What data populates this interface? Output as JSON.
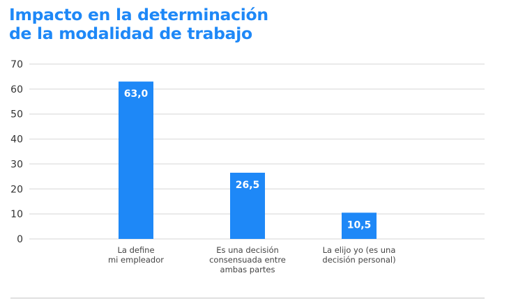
{
  "chart_data": {
    "type": "bar",
    "title_lines": [
      "Impacto en la determinación",
      "de la modalidad de trabajo"
    ],
    "categories": [
      [
        "La define",
        "mi empleador"
      ],
      [
        "Es una decisión",
        "consensuada entre",
        "ambas partes"
      ],
      [
        "La elijo yo (es una",
        "decisión personal)"
      ]
    ],
    "values": [
      63.0,
      26.5,
      10.5
    ],
    "value_labels": [
      "63,0",
      "26,5",
      "10,5"
    ],
    "ylim": [
      0,
      70
    ],
    "yticks": [
      0,
      10,
      20,
      30,
      40,
      50,
      60,
      70
    ],
    "xlabel": "",
    "ylabel": "",
    "grid": true,
    "legend": "none",
    "colors": {
      "bar": "#1e88f7",
      "title": "#1e88f7",
      "grid": "#e3e3e3",
      "separator": "#d6d6d6"
    }
  }
}
